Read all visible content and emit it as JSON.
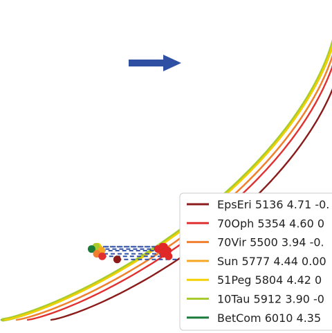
{
  "chart_data": {
    "type": "line",
    "title": "",
    "xlabel": "",
    "ylabel": "",
    "grid": false,
    "legend_placement": "lower-right",
    "annotation": {
      "type": "arrow",
      "direction": "right",
      "color": "#2f4fa3"
    },
    "series": [
      {
        "name": "EpsEri 5136 4.71 -0.",
        "color": "#8b1a1a",
        "shift": 72
      },
      {
        "name": "70Oph 5354 4.60  0",
        "color": "#e03030",
        "shift": 38
      },
      {
        "name": "70Vir 5500 3.94 -0.",
        "color": "#f08030",
        "shift": 22
      },
      {
        "name": "Sun 5777 4.44  0.00",
        "color": "#f5a623",
        "shift": 22
      },
      {
        "name": "51Peg 5804 4.42  0",
        "color": "#f5d000",
        "shift": 5
      },
      {
        "name": "10Tau 5912 3.90 -0",
        "color": "#a8cc30",
        "shift": 2
      },
      {
        "name": "BetCom 6010 4.35",
        "color": "#1a7a3a",
        "shift": 0
      }
    ],
    "markers": [
      {
        "series": "51Peg 5804 4.42  0",
        "level": 0.7441
      },
      {
        "series": "10Tau 5912 3.90 -0",
        "level": 0.7441
      },
      {
        "series": "BetCom 6010 4.35",
        "level": 0.7186
      },
      {
        "series": "Sun 5777 4.44  0.00",
        "level": 0.6989
      },
      {
        "series": "70Vir 5500 3.94 -0.",
        "level": 0.6641
      },
      {
        "series": "70Oph 5354 4.60  0",
        "level": 0.6355
      },
      {
        "series": "EpsEri 5136 4.71 -0.",
        "level": 0.6
      }
    ]
  }
}
